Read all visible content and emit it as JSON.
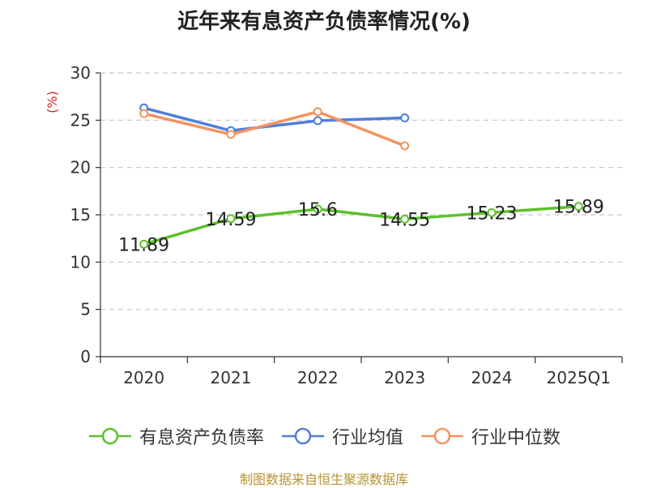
{
  "chart_data": {
    "type": "line",
    "title": "近年来有息资产负债率情况(%)",
    "ylabel": "(%)",
    "xlabel": "",
    "categories": [
      "2020",
      "2021",
      "2022",
      "2023",
      "2024",
      "2025Q1"
    ],
    "ylim": [
      0,
      30
    ],
    "yticks": [
      0,
      5,
      10,
      15,
      20,
      25,
      30
    ],
    "grid": true,
    "legend_position": "bottom",
    "series": [
      {
        "name": "有息资产负债率",
        "color": "#5cc12a",
        "values": [
          11.89,
          14.59,
          15.6,
          14.55,
          15.23,
          15.89
        ],
        "labels": [
          "11.89",
          "14.59",
          "15.6",
          "14.55",
          "15.23",
          "15.89"
        ]
      },
      {
        "name": "行业均值",
        "color": "#4f7fdb",
        "values": [
          26.3,
          23.9,
          24.95,
          25.25,
          null,
          null
        ]
      },
      {
        "name": "行业中位数",
        "color": "#f5935f",
        "values": [
          25.7,
          23.5,
          25.9,
          22.3,
          null,
          null
        ]
      }
    ]
  },
  "footer": {
    "source": "制图数据来自恒生聚源数据库"
  }
}
